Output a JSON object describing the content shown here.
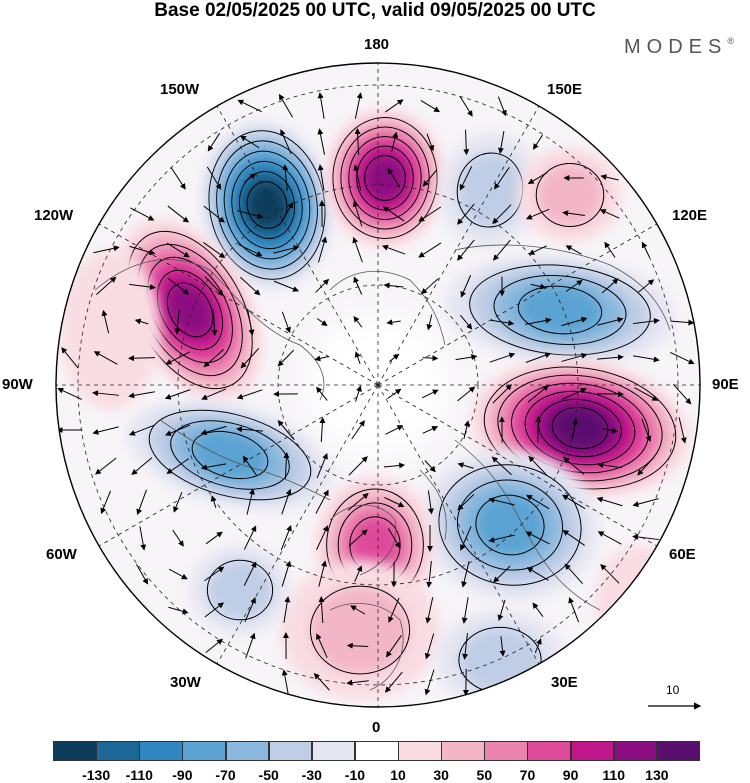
{
  "header": {
    "title": "Base 02/05/2025 00 UTC, valid 09/05/2025 00 UTC",
    "brand": "MODES",
    "brand_mark": "®"
  },
  "map": {
    "projection": "north-polar-stereographic",
    "longitude_labels": {
      "top": "180",
      "top_left": "150W",
      "top_right": "150E",
      "upper_left": "120W",
      "upper_right": "120E",
      "left": "90W",
      "right": "90E",
      "lower_left": "60W",
      "lower_right": "60E",
      "bottom_left": "30W",
      "bottom_right": "30E",
      "bottom": "0"
    },
    "anomaly_centers": [
      {
        "label": "Negative anomaly, Gulf of Alaska / 150W",
        "sign": "negative",
        "peak": -130
      },
      {
        "label": "Positive anomaly, Bering Strait / 180",
        "sign": "positive",
        "peak": 110
      },
      {
        "label": "Negative anomaly, 155E",
        "sign": "negative",
        "peak": -30
      },
      {
        "label": "Positive anomaly, western Canada 115W",
        "sign": "positive",
        "peak": 110
      },
      {
        "label": "Negative anomaly, Siberia 100E",
        "sign": "negative",
        "peak": -70
      },
      {
        "label": "Positive anomaly, central Siberia 80E",
        "sign": "positive",
        "peak": 130
      },
      {
        "label": "Negative anomaly, Eastern Europe 40E",
        "sign": "negative",
        "peak": -70
      },
      {
        "label": "Positive anomaly, British Isles 5W",
        "sign": "positive",
        "peak": 70
      },
      {
        "label": "Negative anomaly, Hudson Bay 75W",
        "sign": "negative",
        "peak": -70
      }
    ],
    "vector_reference": {
      "label": "10"
    }
  },
  "colorbar": {
    "colors": [
      "#0d3c5c",
      "#1b6796",
      "#2f86c0",
      "#5aa3d3",
      "#8ab8de",
      "#bfcde6",
      "#e6e6f2",
      "#ffffff",
      "#f9dde3",
      "#f3b6c8",
      "#ec84b0",
      "#df4a9a",
      "#c0178a",
      "#8c0f82",
      "#5a0e6e"
    ],
    "ticks": [
      "-130",
      "-110",
      "-90",
      "-70",
      "-50",
      "-30",
      "-10",
      "10",
      "30",
      "50",
      "70",
      "90",
      "110",
      "130"
    ]
  }
}
